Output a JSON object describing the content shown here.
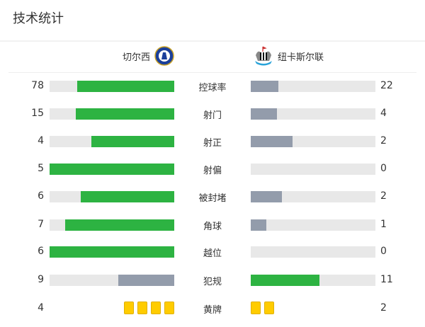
{
  "title": "技术统计",
  "home": {
    "name": "切尔西",
    "logo": "chelsea-crest"
  },
  "away": {
    "name": "纽卡斯尔联",
    "logo": "newcastle-crest"
  },
  "colors": {
    "leader": "#2db342",
    "trailer": "#939cab",
    "track": "#e8e8e8",
    "card": "#ffcc00"
  },
  "stats": [
    {
      "label": "控球率",
      "home": 78,
      "away": 22
    },
    {
      "label": "射门",
      "home": 15,
      "away": 4
    },
    {
      "label": "射正",
      "home": 4,
      "away": 2
    },
    {
      "label": "射偏",
      "home": 5,
      "away": 0
    },
    {
      "label": "被封堵",
      "home": 6,
      "away": 2
    },
    {
      "label": "角球",
      "home": 7,
      "away": 1
    },
    {
      "label": "越位",
      "home": 6,
      "away": 0
    },
    {
      "label": "犯规",
      "home": 9,
      "away": 11
    }
  ],
  "yellow_cards": {
    "label": "黄牌",
    "home": 4,
    "away": 2
  }
}
